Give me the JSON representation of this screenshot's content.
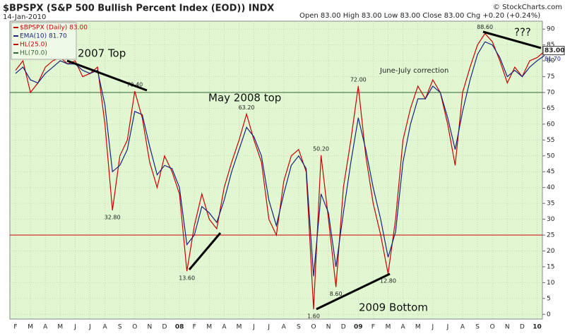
{
  "chart_data": {
    "type": "line",
    "title": "$BPSPX (S&P 500 Bullish Percent Index (EOD)) INDX",
    "date": "14-Jan-2010",
    "quote": "Open 83.00   High 83.00   Low 83.00   Close 83.00   Chg +0.20 (+0.24%)",
    "credit": "© StockCharts.com",
    "categories": [
      "F",
      null,
      "M",
      null,
      "A",
      null,
      "M",
      null,
      "J",
      null,
      "J",
      null,
      "A",
      null,
      "S",
      null,
      "O",
      null,
      "N",
      null,
      "D",
      null,
      "08",
      null,
      "F",
      null,
      "M",
      null,
      "A",
      null,
      "M",
      null,
      "J",
      null,
      "J",
      null,
      "A",
      null,
      "S",
      null,
      "O",
      null,
      "N",
      null,
      "D",
      null,
      "09",
      null,
      "F",
      null,
      "M",
      null,
      "A",
      null,
      "M",
      null,
      "J",
      null,
      "J",
      null,
      "A",
      null,
      "S",
      null,
      "O",
      null,
      "N",
      null,
      "D",
      null,
      "10",
      null
    ],
    "series": [
      {
        "name": "$BPSPX (Daily) 83.00",
        "color": "#cc0000",
        "values": [
          77,
          80,
          70,
          73,
          78,
          80,
          81,
          79,
          80,
          75,
          76,
          78,
          60,
          32.8,
          50,
          55,
          70.4,
          62,
          48,
          40,
          50,
          45,
          38,
          13.6,
          28,
          38,
          30,
          27,
          40,
          48,
          55,
          63.2,
          55,
          48,
          30,
          25,
          42,
          50,
          52,
          45,
          1.6,
          50.2,
          30,
          8.6,
          40,
          55,
          72,
          50,
          35,
          25,
          12.8,
          30,
          55,
          65,
          72,
          68,
          74,
          70,
          60,
          47,
          70,
          78,
          85,
          88.6,
          86,
          80,
          73,
          78,
          75,
          80,
          81,
          83
        ],
        "value_labels": [
          null,
          null,
          null,
          null,
          null,
          null,
          null,
          null,
          null,
          null,
          null,
          null,
          null,
          "32.80",
          null,
          null,
          "70.40",
          null,
          null,
          null,
          null,
          null,
          null,
          "13.60",
          null,
          null,
          null,
          null,
          null,
          null,
          null,
          "63.20",
          null,
          null,
          null,
          null,
          null,
          null,
          null,
          null,
          "1.60",
          "50.20",
          null,
          "8.60",
          null,
          null,
          "72.00",
          null,
          null,
          null,
          "12.80",
          null,
          null,
          null,
          null,
          null,
          null,
          null,
          null,
          null,
          null,
          null,
          null,
          "88.60",
          null,
          null,
          null,
          null,
          null,
          null,
          null,
          null
        ]
      },
      {
        "name": "EMA(10) 81.70",
        "color": "#1a237e",
        "values": [
          76,
          78,
          74,
          73,
          76,
          78,
          80,
          79,
          79,
          77,
          76,
          77,
          66,
          45,
          47,
          52,
          64,
          63,
          53,
          44,
          47,
          46,
          40,
          22,
          25,
          34,
          32,
          29,
          36,
          45,
          52,
          59,
          56,
          50,
          36,
          28,
          38,
          47,
          50,
          46,
          12,
          38,
          32,
          15,
          32,
          48,
          62,
          52,
          40,
          30,
          18,
          26,
          48,
          60,
          68,
          68,
          72,
          70,
          62,
          52,
          64,
          74,
          82,
          86,
          85,
          81,
          75,
          77,
          75,
          78,
          80,
          81.7
        ]
      }
    ],
    "hlines": [
      {
        "name": "HL(25.0)",
        "value": 25,
        "color": "#cc0000"
      },
      {
        "name": "HL(70.0)",
        "value": 70,
        "color": "#336633"
      }
    ],
    "last_labels": [
      {
        "value": 83,
        "label": "83.00"
      },
      {
        "value": 81.7,
        "label": "81.70"
      }
    ],
    "annotations": [
      "2007 Top",
      "May 2008 top",
      "June-July correction",
      "???",
      "2009 Bottom"
    ],
    "ylim": [
      -1.5,
      92.5
    ],
    "yticks": [
      0,
      5,
      10,
      15,
      20,
      25,
      30,
      35,
      40,
      45,
      50,
      55,
      60,
      65,
      70,
      75,
      80,
      85,
      90
    ],
    "grid": true
  }
}
